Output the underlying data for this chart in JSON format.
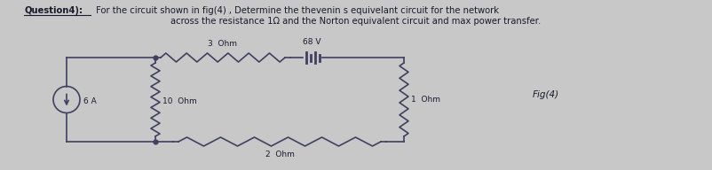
{
  "bg_color": "#c8c8c8",
  "text_color": "#1a1a2e",
  "title_bold": "Question4):",
  "title_line1": " For the circuit shown in fig(4) , Determine the thevenin s equivelant circuit for the network",
  "title_line2": "across the resistance 1Ω and the Norton equivalent circuit and max power transfer.",
  "fig_label": "Fig(4)",
  "labels": {
    "source": "6 A",
    "r1": "3  Ohm",
    "r2": "10  Ohm",
    "r3": "1  Ohm",
    "r4": "2  Ohm",
    "v1": "68 V"
  },
  "circuit_color": "#404060",
  "line_width": 1.2
}
